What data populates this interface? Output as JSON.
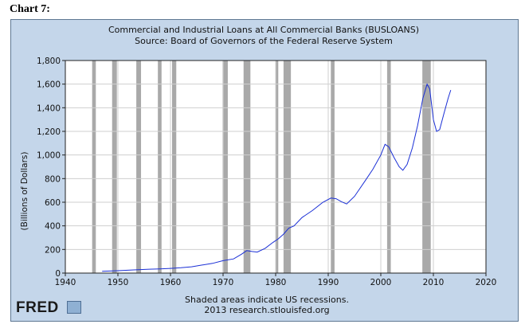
{
  "heading": "Chart 7:",
  "colors": {
    "line": "#1a2fd6",
    "recession": "#a9a9a9",
    "panel": "#c4d6ea",
    "plot_bg": "#ffffff"
  },
  "chart_data": {
    "type": "line",
    "title": "Commercial and Industrial Loans at All Commercial Banks (BUSLOANS)",
    "subtitle": "Source: Board of Governors of the Federal Reserve System",
    "xlabel": "",
    "ylabel": "(Billions of Dollars)",
    "xlim": [
      1940,
      2020
    ],
    "ylim": [
      0,
      1800
    ],
    "x_ticks": [
      1940,
      1950,
      1960,
      1970,
      1980,
      1990,
      2000,
      2010,
      2020
    ],
    "y_ticks": [
      0,
      200,
      400,
      600,
      800,
      1000,
      1200,
      1400,
      1600,
      1800
    ],
    "y_tick_labels": [
      "0",
      "200",
      "400",
      "600",
      "800",
      "1,000",
      "1,200",
      "1,400",
      "1,600",
      "1,800"
    ],
    "grid": true,
    "recessions": [
      [
        1945.1,
        1945.8
      ],
      [
        1948.9,
        1949.8
      ],
      [
        1953.5,
        1954.4
      ],
      [
        1957.6,
        1958.3
      ],
      [
        1960.3,
        1961.1
      ],
      [
        1969.9,
        1970.9
      ],
      [
        1973.9,
        1975.2
      ],
      [
        1980.0,
        1980.5
      ],
      [
        1981.5,
        1982.9
      ],
      [
        1990.5,
        1991.2
      ],
      [
        2001.2,
        2001.9
      ],
      [
        2007.9,
        2009.5
      ]
    ],
    "series": [
      {
        "x": [
          1947.0,
          1950.0,
          1953.0,
          1956.0,
          1958.0,
          1960.0,
          1962.0,
          1964.0,
          1966.0,
          1968.0,
          1970.0,
          1972.0,
          1973.5,
          1974.5,
          1975.5,
          1976.5,
          1978.0,
          1979.5,
          1980.5,
          1981.5,
          1982.5,
          1983.5,
          1985.0,
          1987.0,
          1989.0,
          1990.5,
          1991.5,
          1992.5,
          1993.5,
          1995.0,
          1997.0,
          1998.5,
          2000.0,
          2000.8,
          2001.5,
          2002.5,
          2003.5,
          2004.2,
          2005.0,
          2006.0,
          2007.0,
          2008.0,
          2008.8,
          2009.3,
          2010.0,
          2010.6,
          2011.2,
          2012.0,
          2012.8,
          2013.3
        ],
        "y": [
          15,
          20,
          27,
          33,
          36,
          40,
          45,
          53,
          68,
          82,
          105,
          120,
          160,
          190,
          183,
          178,
          210,
          260,
          290,
          330,
          380,
          400,
          470,
          530,
          600,
          635,
          630,
          605,
          585,
          650,
          780,
          880,
          1000,
          1090,
          1070,
          980,
          900,
          870,
          920,
          1060,
          1250,
          1480,
          1600,
          1560,
          1300,
          1200,
          1215,
          1350,
          1480,
          1550
        ]
      }
    ]
  },
  "footer": {
    "recession_note": "Shaded areas indicate US recessions.",
    "credit": "2013 research.stlouisfed.org"
  },
  "logo": "FRED"
}
